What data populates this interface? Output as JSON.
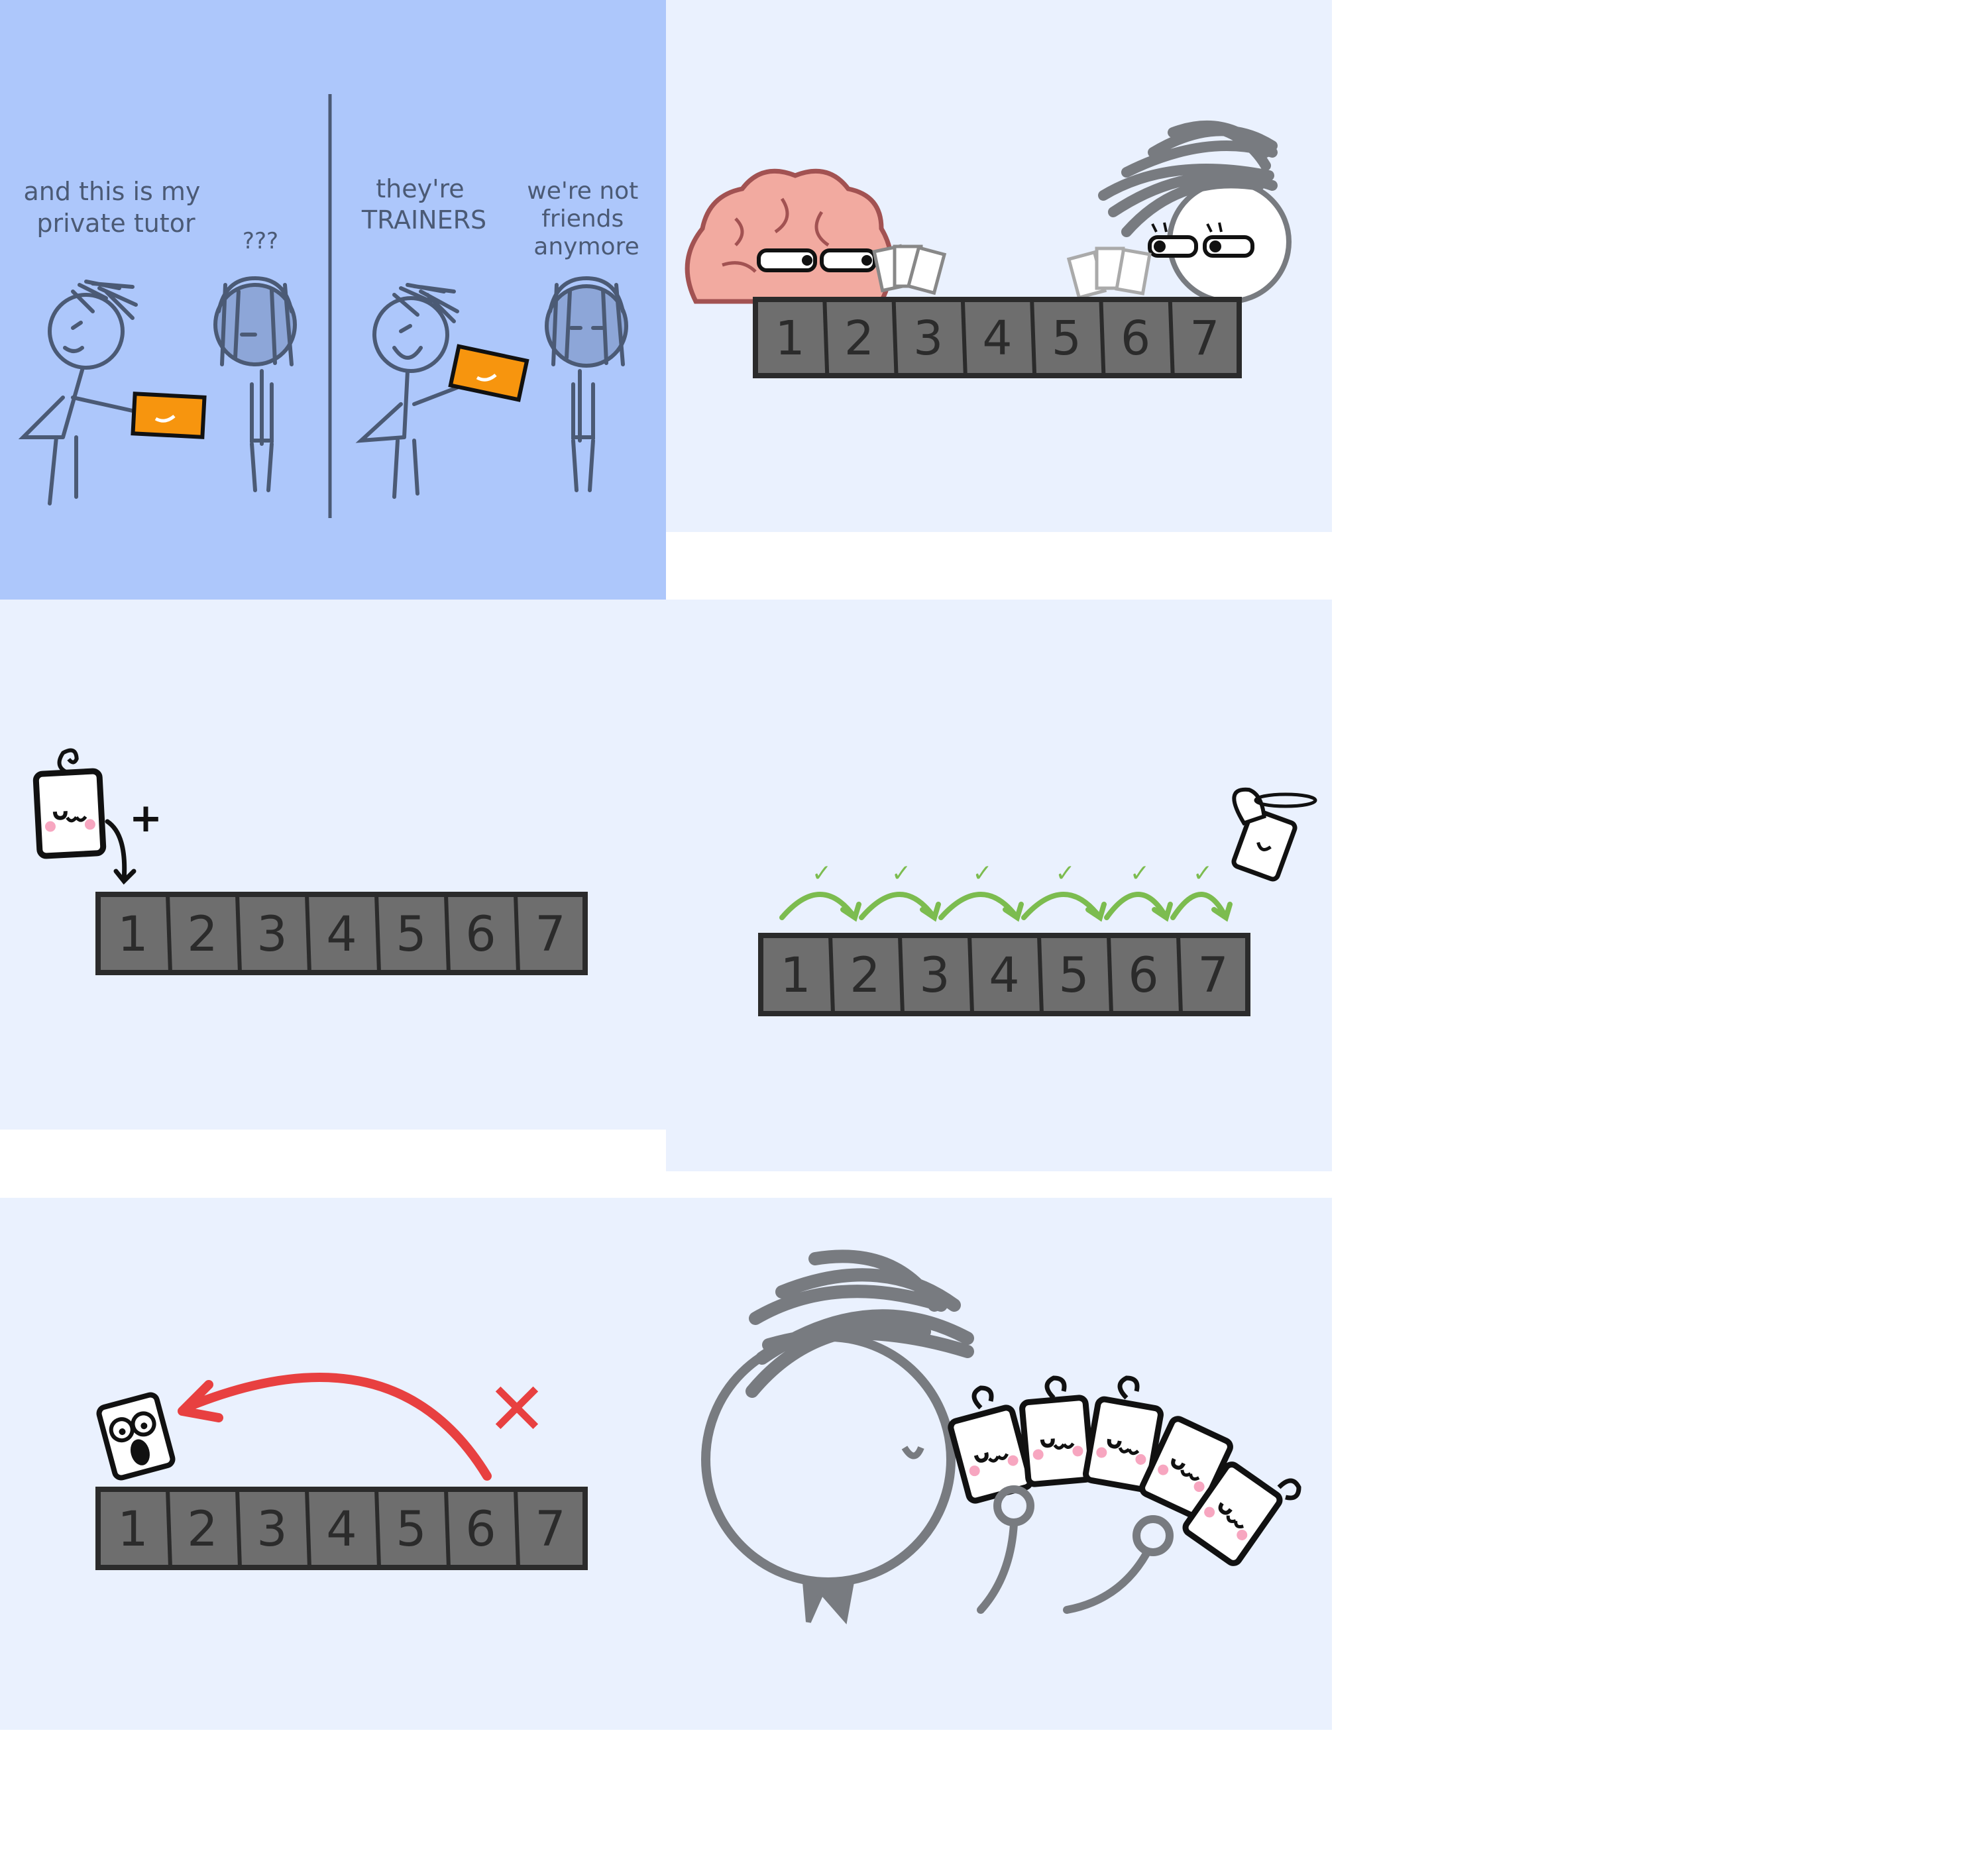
{
  "colors": {
    "panel1_bg": "#adc7fb",
    "panel_bg": "#eaf1fe",
    "ink": "#4b5a75",
    "box": "#6e6e6e",
    "orange": "#f7950e",
    "check_green": "#7cbc4f",
    "red": "#e84040",
    "brain": "#f2aaa0",
    "grey_hair": "#787b80"
  },
  "panel1": {
    "speech_left": [
      "and this is my",
      "private tutor"
    ],
    "reply_left": "???",
    "speech_right": [
      "they're",
      "TRAINERS"
    ],
    "reply_right": [
      "we're not",
      "friends",
      "anymore"
    ]
  },
  "slots": [
    "1",
    "2",
    "3",
    "4",
    "5",
    "6",
    "7"
  ],
  "marks": {
    "plus": "+",
    "check": "✓",
    "cross": "✕"
  },
  "icons": [
    "gift-card-icon",
    "brain-icon",
    "playing-cards-icon",
    "angel-card-icon",
    "scared-card-icon",
    "happy-card-icon"
  ]
}
